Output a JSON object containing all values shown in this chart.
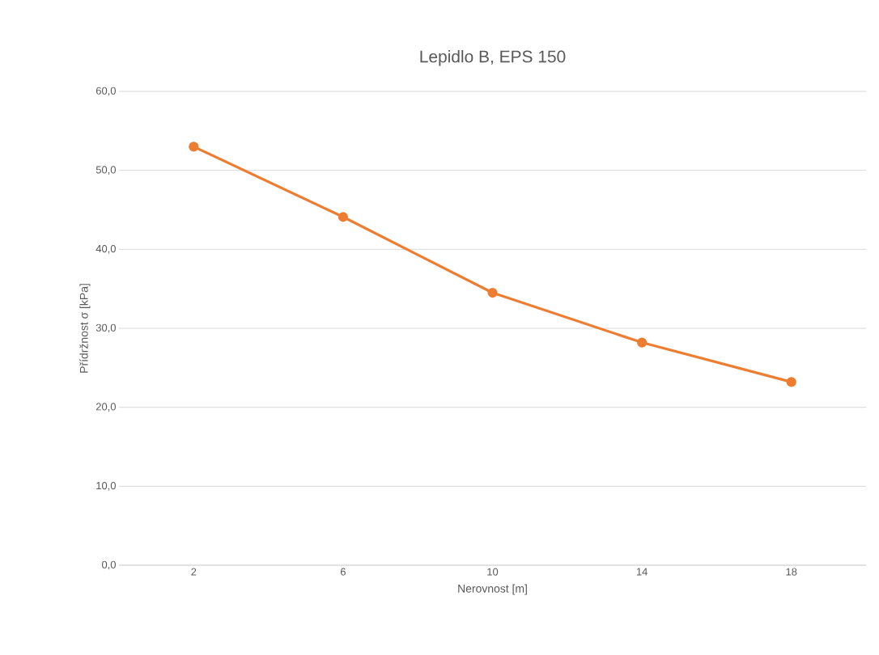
{
  "chart_data": {
    "type": "line",
    "title": "Lepidlo B, EPS 150",
    "xlabel": "Nerovnost [m]",
    "ylabel": "Přídržnost σ [kPa]",
    "categories": [
      "2",
      "6",
      "10",
      "14",
      "18"
    ],
    "series": [
      {
        "color": "#ed7d31",
        "values": [
          53.0,
          44.1,
          34.5,
          28.2,
          23.2
        ]
      }
    ],
    "ylim": [
      0,
      60
    ],
    "yticks": [
      {
        "value": 0,
        "label": "0,0"
      },
      {
        "value": 10,
        "label": "10,0"
      },
      {
        "value": 20,
        "label": "20,0"
      },
      {
        "value": 30,
        "label": "30,0"
      },
      {
        "value": 40,
        "label": "40,0"
      },
      {
        "value": 50,
        "label": "50,0"
      },
      {
        "value": 60,
        "label": "60,0"
      }
    ],
    "grid": "y",
    "marker": "circle",
    "line_style": "solid"
  }
}
